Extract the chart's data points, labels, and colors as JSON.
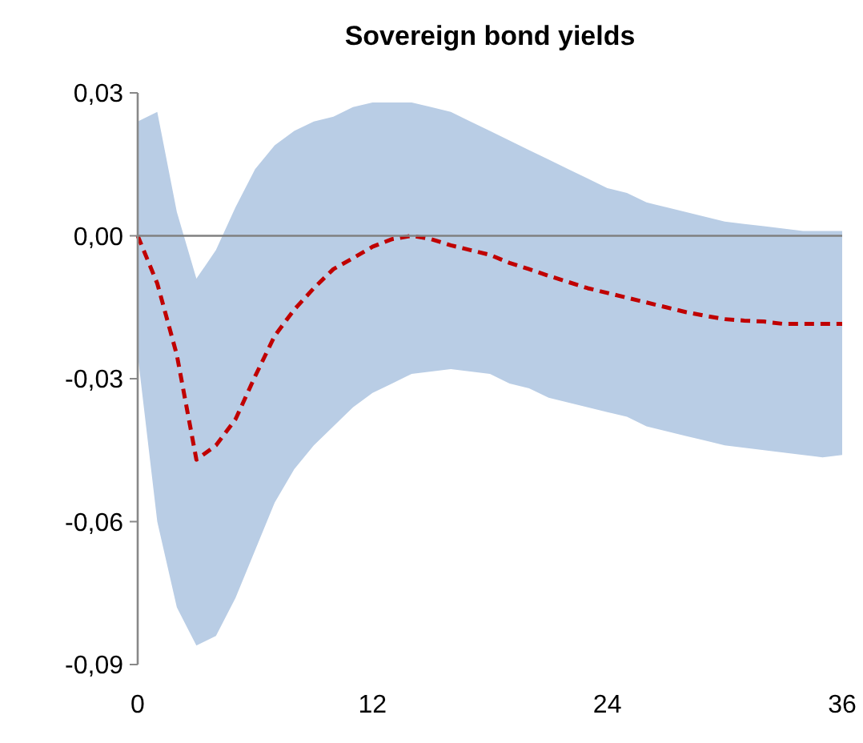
{
  "chart_data": {
    "type": "line",
    "title": "Sovereign bond yields",
    "x": [
      0,
      1,
      2,
      3,
      4,
      5,
      6,
      7,
      8,
      9,
      10,
      11,
      12,
      13,
      14,
      15,
      16,
      17,
      18,
      19,
      20,
      21,
      22,
      23,
      24,
      25,
      26,
      27,
      28,
      29,
      30,
      31,
      32,
      33,
      34,
      35,
      36
    ],
    "series": [
      {
        "color": "#c00000",
        "line_style": "dashed",
        "values": [
          0,
          -0.01,
          -0.025,
          -0.047,
          -0.044,
          -0.0385,
          -0.0295,
          -0.021,
          -0.0155,
          -0.011,
          -0.007,
          -0.0047,
          -0.0023,
          -0.0007,
          0,
          -0.0007,
          -0.002,
          -0.003,
          -0.004,
          -0.0057,
          -0.007,
          -0.0084,
          -0.0097,
          -0.011,
          -0.012,
          -0.013,
          -0.014,
          -0.015,
          -0.016,
          -0.0168,
          -0.0175,
          -0.0178,
          -0.018,
          -0.0185,
          -0.0185,
          -0.0185,
          -0.0185
        ],
        "upper": [
          0.024,
          0.026,
          0.005,
          -0.009,
          -0.003,
          0.006,
          0.014,
          0.019,
          0.022,
          0.024,
          0.025,
          0.027,
          0.028,
          0.028,
          0.028,
          0.027,
          0.026,
          0.024,
          0.022,
          0.02,
          0.018,
          0.016,
          0.014,
          0.012,
          0.01,
          0.009,
          0.007,
          0.006,
          0.005,
          0.004,
          0.003,
          0.0025,
          0.002,
          0.0015,
          0.001,
          0.001,
          0.001
        ],
        "lower": [
          -0.025,
          -0.06,
          -0.078,
          -0.086,
          -0.084,
          -0.076,
          -0.066,
          -0.056,
          -0.049,
          -0.044,
          -0.04,
          -0.036,
          -0.033,
          -0.031,
          -0.029,
          -0.0285,
          -0.028,
          -0.0285,
          -0.029,
          -0.031,
          -0.032,
          -0.034,
          -0.035,
          -0.036,
          -0.037,
          -0.038,
          -0.04,
          -0.041,
          -0.042,
          -0.043,
          -0.044,
          -0.0445,
          -0.045,
          -0.0455,
          -0.046,
          -0.0465,
          -0.046
        ]
      }
    ],
    "xlim": [
      0,
      36
    ],
    "xticks": [
      0,
      12,
      24,
      36
    ],
    "ylim": [
      -0.09,
      0.03
    ],
    "yticks": [
      {
        "value": 0.03,
        "label": "0,03"
      },
      {
        "value": 0,
        "label": "0,00"
      },
      {
        "value": -0.03,
        "label": "-0,03"
      },
      {
        "value": -0.06,
        "label": "-0,06"
      },
      {
        "value": -0.09,
        "label": "-0,09"
      }
    ],
    "ref_lines": [
      {
        "axis": "y",
        "value": 0,
        "color": "#808080"
      }
    ],
    "marker": "none"
  }
}
